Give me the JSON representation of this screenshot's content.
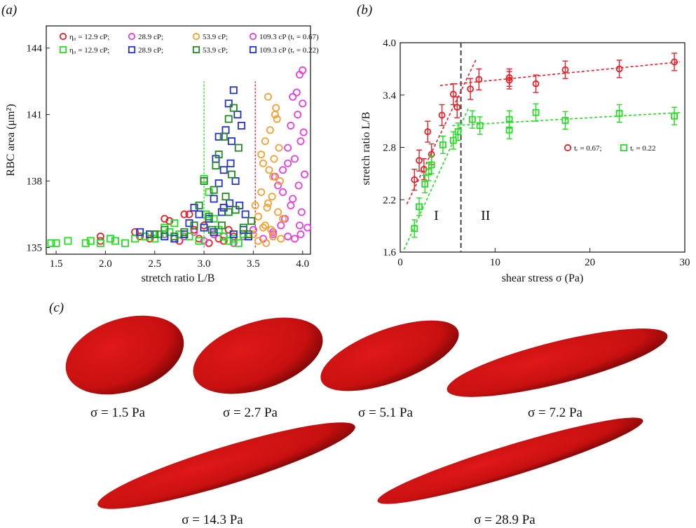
{
  "panels": {
    "a": "(a)",
    "b": "(b)",
    "c": "(c)"
  },
  "colors": {
    "red": "#e8202a",
    "green": "#22dd22",
    "magenta": "#e83ee0",
    "blue": "#2233cc",
    "orange": "#f5a030",
    "darkgreen": "#228822",
    "cell": "#cc1111"
  },
  "chart_data": [
    {
      "type": "scatter",
      "id": "a",
      "xlabel": "stretch ratio L/B",
      "ylabel": "RBC area (μm²)",
      "xlim": [
        1.4,
        4.08
      ],
      "ylim": [
        134.7,
        145
      ],
      "xticks": [
        "1.5",
        "2.0",
        "2.5",
        "3.0",
        "3.5",
        "4.0"
      ],
      "xtick_values": [
        1.5,
        2.0,
        2.5,
        3.0,
        3.5,
        4.0
      ],
      "yticks": [
        "135",
        "138",
        "141",
        "144"
      ],
      "ytick_values": [
        135,
        138,
        141,
        144
      ],
      "vlines": [
        {
          "x": 3.0,
          "y0": 135,
          "y1": 142.5,
          "color": "#22dd22"
        },
        {
          "x": 3.52,
          "y0": 135,
          "y1": 142.5,
          "color": "#e8202a"
        }
      ],
      "legend": [
        [
          "η₀ = 12.9 cP;",
          "28.9 cP;",
          "53.9 cP;",
          "109.3 cP (tᵣ = 0.67)"
        ],
        [
          "η₀ = 12.9 cP;",
          "28.9 cP;",
          "53.9 cP;",
          "109.3 cP (tᵣ = 0.22)"
        ]
      ],
      "series": [
        {
          "marker": "circle",
          "color": "#e8202a",
          "group": "tr=0.67",
          "points": [
            [
              1.95,
              135.3
            ],
            [
              1.95,
              135.5
            ],
            [
              2.3,
              135.7
            ],
            [
              2.35,
              135.5
            ],
            [
              2.45,
              135.4
            ],
            [
              2.55,
              135.6
            ],
            [
              2.6,
              136.3
            ],
            [
              2.65,
              136.2
            ],
            [
              2.75,
              135.3
            ],
            [
              2.8,
              136.5
            ],
            [
              2.85,
              136.5
            ],
            [
              2.9,
              135.8
            ],
            [
              2.95,
              135.4
            ],
            [
              3.0,
              136.0
            ],
            [
              3.05,
              135.2
            ],
            [
              3.1,
              135.6
            ],
            [
              3.15,
              135.4
            ],
            [
              3.2,
              135.3
            ],
            [
              3.25,
              135.8
            ],
            [
              3.3,
              135.5
            ]
          ]
        },
        {
          "marker": "circle",
          "color": "#e83ee0",
          "group": "tr=0.67",
          "points": [
            [
              2.6,
              135.6
            ],
            [
              2.7,
              135.4
            ],
            [
              2.8,
              135.5
            ],
            [
              2.9,
              135.7
            ],
            [
              3.0,
              135.3
            ],
            [
              3.1,
              135.6
            ],
            [
              3.2,
              135.5
            ],
            [
              3.3,
              135.2
            ],
            [
              3.4,
              135.5
            ],
            [
              3.5,
              135.8
            ],
            [
              3.6,
              135.4
            ],
            [
              3.7,
              135.6
            ],
            [
              3.75,
              137.8
            ],
            [
              3.8,
              138.5
            ],
            [
              3.82,
              136.3
            ],
            [
              3.85,
              139.5
            ],
            [
              3.85,
              135.5
            ],
            [
              3.88,
              140.5
            ],
            [
              3.9,
              141.8
            ],
            [
              3.9,
              137.2
            ],
            [
              3.92,
              139.0
            ],
            [
              3.94,
              142.0
            ],
            [
              3.95,
              141.0
            ],
            [
              3.96,
              137.8
            ],
            [
              3.97,
              142.8
            ],
            [
              3.98,
              139.8
            ],
            [
              3.99,
              136.6
            ],
            [
              4.0,
              141.5
            ],
            [
              4.0,
              143.0
            ],
            [
              4.01,
              140.2
            ],
            [
              4.02,
              138.3
            ],
            [
              3.97,
              136.0
            ],
            [
              3.92,
              135.4
            ],
            [
              3.88,
              136.9
            ],
            [
              3.8,
              137.5
            ],
            [
              3.78,
              136.0
            ],
            [
              3.72,
              138.2
            ],
            [
              3.7,
              135.7
            ],
            [
              3.98,
              135.6
            ],
            [
              4.05,
              135.9
            ],
            [
              3.85,
              138.8
            ]
          ]
        },
        {
          "marker": "circle",
          "color": "#f5a030",
          "group": "tr=0.67",
          "points": [
            [
              3.5,
              135.6
            ],
            [
              3.55,
              136.4
            ],
            [
              3.58,
              137.5
            ],
            [
              3.6,
              138.8
            ],
            [
              3.62,
              139.8
            ],
            [
              3.63,
              135.2
            ],
            [
              3.65,
              137.0
            ],
            [
              3.67,
              140.3
            ],
            [
              3.68,
              135.8
            ],
            [
              3.7,
              138.2
            ],
            [
              3.72,
              141.0
            ],
            [
              3.73,
              141.3
            ],
            [
              3.75,
              136.6
            ],
            [
              3.76,
              139.5
            ],
            [
              3.78,
              135.4
            ],
            [
              3.6,
              135.9
            ],
            [
              3.64,
              136.8
            ],
            [
              3.66,
              138.5
            ],
            [
              3.69,
              137.3
            ],
            [
              3.71,
              139.0
            ],
            [
              3.74,
              140.8
            ],
            [
              3.55,
              135.3
            ],
            [
              3.52,
              136.9
            ],
            [
              3.58,
              139.2
            ],
            [
              3.62,
              136.0
            ],
            [
              3.7,
              135.5
            ],
            [
              3.77,
              138.0
            ],
            [
              3.8,
              136.3
            ],
            [
              3.65,
              141.8
            ]
          ]
        },
        {
          "marker": "square",
          "color": "#22dd22",
          "group": "tr=0.22",
          "points": [
            [
              1.45,
              135.2
            ],
            [
              1.5,
              135.2
            ],
            [
              1.62,
              135.3
            ],
            [
              1.8,
              135.2
            ],
            [
              1.85,
              135.3
            ],
            [
              1.95,
              135.2
            ],
            [
              2.05,
              135.4
            ],
            [
              2.1,
              135.3
            ],
            [
              2.2,
              135.2
            ],
            [
              2.3,
              135.4
            ],
            [
              2.4,
              135.5
            ],
            [
              2.5,
              135.4
            ],
            [
              2.6,
              135.9
            ],
            [
              2.7,
              136.1
            ],
            [
              2.75,
              135.6
            ],
            [
              2.85,
              135.5
            ],
            [
              2.95,
              135.3
            ],
            [
              3.0,
              138.1
            ],
            [
              3.02,
              136.5
            ],
            [
              3.05,
              137.5
            ],
            [
              3.1,
              136.3
            ],
            [
              3.15,
              135.8
            ],
            [
              3.2,
              135.5
            ],
            [
              3.25,
              135.3
            ],
            [
              3.3,
              135.4
            ],
            [
              3.35,
              135.2
            ],
            [
              3.4,
              135.6
            ],
            [
              3.45,
              135.5
            ],
            [
              2.65,
              135.7
            ],
            [
              2.55,
              135.6
            ]
          ]
        },
        {
          "marker": "square",
          "color": "#2233cc",
          "group": "tr=0.22",
          "points": [
            [
              2.35,
              135.7
            ],
            [
              2.45,
              135.6
            ],
            [
              2.6,
              135.5
            ],
            [
              2.7,
              135.4
            ],
            [
              2.8,
              135.6
            ],
            [
              2.85,
              136.1
            ],
            [
              2.9,
              136.8
            ],
            [
              2.95,
              136.5
            ],
            [
              3.0,
              135.9
            ],
            [
              3.05,
              136.3
            ],
            [
              3.1,
              137.2
            ],
            [
              3.12,
              139.0
            ],
            [
              3.15,
              137.9
            ],
            [
              3.18,
              136.6
            ],
            [
              3.2,
              138.5
            ],
            [
              3.22,
              140.3
            ],
            [
              3.25,
              141.5
            ],
            [
              3.26,
              137.0
            ],
            [
              3.28,
              139.8
            ],
            [
              3.3,
              142.1
            ],
            [
              3.32,
              138.0
            ],
            [
              3.34,
              141.0
            ],
            [
              3.36,
              136.9
            ],
            [
              3.38,
              140.5
            ],
            [
              3.4,
              135.8
            ],
            [
              3.42,
              136.5
            ],
            [
              3.45,
              135.5
            ],
            [
              3.2,
              136.8
            ],
            [
              3.1,
              135.7
            ],
            [
              3.15,
              140.0
            ],
            [
              3.27,
              138.8
            ],
            [
              3.3,
              135.6
            ]
          ]
        },
        {
          "marker": "square",
          "color": "#228822",
          "group": "tr=0.22",
          "points": [
            [
              2.5,
              135.6
            ],
            [
              2.6,
              135.8
            ],
            [
              2.7,
              135.5
            ],
            [
              2.8,
              135.7
            ],
            [
              2.9,
              136.0
            ],
            [
              2.95,
              136.9
            ],
            [
              3.0,
              138.0
            ],
            [
              3.05,
              136.4
            ],
            [
              3.1,
              137.6
            ],
            [
              3.15,
              139.2
            ],
            [
              3.18,
              136.0
            ],
            [
              3.2,
              140.0
            ],
            [
              3.22,
              137.3
            ],
            [
              3.25,
              140.8
            ],
            [
              3.28,
              138.3
            ],
            [
              3.3,
              141.3
            ],
            [
              3.32,
              136.7
            ],
            [
              3.35,
              139.5
            ],
            [
              3.4,
              135.9
            ],
            [
              3.45,
              135.6
            ],
            [
              3.48,
              136.2
            ],
            [
              3.25,
              136.6
            ],
            [
              3.12,
              138.7
            ],
            [
              3.08,
              135.8
            ]
          ]
        }
      ]
    },
    {
      "type": "scatter",
      "id": "b",
      "xlabel": "shear stress σ (Pa)",
      "ylabel": "stretch ratio L/B",
      "xlim": [
        0,
        30
      ],
      "ylim": [
        1.6,
        4.0
      ],
      "xticks": [
        "0",
        "10",
        "20",
        "30"
      ],
      "xtick_values": [
        0,
        10,
        20,
        30
      ],
      "yticks": [
        "1.6",
        "2.2",
        "2.8",
        "3.4",
        "4.0"
      ],
      "ytick_values": [
        1.6,
        2.2,
        2.8,
        3.4,
        4.0
      ],
      "regions": [
        {
          "label": "I",
          "x": 3.8,
          "y": 1.97
        },
        {
          "label": "II",
          "x": 9.0,
          "y": 1.97
        }
      ],
      "divider_x": 6.4,
      "legend": [
        "tᵣ = 0.67;",
        "tᵣ = 0.22"
      ],
      "series": [
        {
          "name": "tᵣ = 0.67",
          "marker": "circle",
          "color": "#e8202a",
          "points": [
            [
              1.5,
              2.43
            ],
            [
              2.0,
              2.65
            ],
            [
              2.5,
              2.55
            ],
            [
              2.9,
              2.98
            ],
            [
              3.3,
              2.72
            ],
            [
              4.4,
              3.17
            ],
            [
              5.6,
              3.41
            ],
            [
              6.0,
              3.26
            ],
            [
              7.4,
              3.47
            ],
            [
              8.3,
              3.58
            ],
            [
              11.5,
              3.57
            ],
            [
              11.5,
              3.6
            ],
            [
              14.3,
              3.53
            ],
            [
              17.4,
              3.69
            ],
            [
              23.1,
              3.7
            ],
            [
              28.9,
              3.78
            ]
          ],
          "errors": [
            0.12,
            0.12,
            0.12,
            0.12,
            0.12,
            0.12,
            0.12,
            0.12,
            0.12,
            0.12,
            0.1,
            0.1,
            0.1,
            0.1,
            0.1,
            0.1
          ]
        },
        {
          "name": "tᵣ = 0.22",
          "marker": "square",
          "color": "#22dd22",
          "points": [
            [
              1.5,
              1.87
            ],
            [
              2.0,
              2.12
            ],
            [
              2.6,
              2.38
            ],
            [
              3.0,
              2.52
            ],
            [
              3.3,
              2.6
            ],
            [
              4.5,
              2.83
            ],
            [
              5.6,
              2.88
            ],
            [
              6.1,
              2.98
            ],
            [
              7.6,
              3.12
            ],
            [
              8.4,
              3.05
            ],
            [
              11.5,
              3.0
            ],
            [
              11.5,
              3.12
            ],
            [
              14.3,
              3.2
            ],
            [
              17.4,
              3.11
            ],
            [
              23.1,
              3.19
            ],
            [
              28.9,
              3.16
            ]
          ],
          "errors": [
            0.1,
            0.1,
            0.1,
            0.1,
            0.1,
            0.1,
            0.1,
            0.1,
            0.1,
            0.1,
            0.1,
            0.1,
            0.1,
            0.1,
            0.1,
            0.1
          ]
        }
      ],
      "fit_lines": [
        {
          "color": "#e8202a",
          "from": [
            0.7,
            2.15
          ],
          "to": [
            8.0,
            3.81
          ]
        },
        {
          "color": "#e8202a",
          "from": [
            4.2,
            3.51
          ],
          "to": [
            29.5,
            3.78
          ]
        },
        {
          "color": "#22dd22",
          "from": [
            0.4,
            1.63
          ],
          "to": [
            7.2,
            3.25
          ]
        },
        {
          "color": "#22dd22",
          "from": [
            5.5,
            3.05
          ],
          "to": [
            29.5,
            3.2
          ]
        }
      ]
    }
  ],
  "cells": [
    {
      "label": "σ = 1.5 Pa"
    },
    {
      "label": "σ = 2.7 Pa"
    },
    {
      "label": "σ = 5.1 Pa"
    },
    {
      "label": "σ = 7.2 Pa"
    },
    {
      "label": "σ = 14.3 Pa"
    },
    {
      "label": "σ = 28.9 Pa"
    }
  ]
}
